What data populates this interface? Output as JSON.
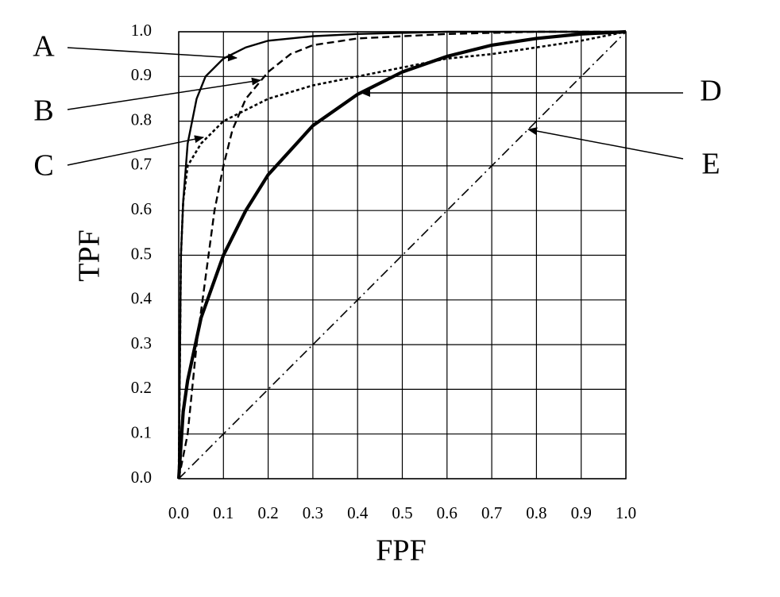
{
  "chart_data": {
    "type": "line",
    "xlabel": "FPF",
    "ylabel": "TPF",
    "xlim": [
      0,
      1
    ],
    "ylim": [
      0,
      1
    ],
    "xticks": [
      {
        "value": 0,
        "label": "0.0"
      },
      0.1,
      0.2,
      0.3,
      0.4,
      0.5,
      0.6,
      0.7,
      0.8,
      0.9,
      {
        "value": 1,
        "label": "1.0"
      }
    ],
    "yticks": [
      {
        "value": 0,
        "label": "0.0"
      },
      0.1,
      0.2,
      0.3,
      0.4,
      0.5,
      0.6,
      0.7,
      0.8,
      0.9,
      {
        "value": 1,
        "label": "1.0"
      }
    ],
    "grid": true,
    "series": [
      {
        "name": "A",
        "color": "#000000",
        "line_style": "solid",
        "x": [
          0,
          0.005,
          0.01,
          0.02,
          0.04,
          0.06,
          0.1,
          0.15,
          0.2,
          0.3,
          0.4,
          0.6,
          0.8,
          1.0
        ],
        "values": [
          0,
          0.5,
          0.62,
          0.75,
          0.85,
          0.9,
          0.94,
          0.965,
          0.98,
          0.99,
          0.995,
          1,
          1,
          1
        ]
      },
      {
        "name": "B",
        "color": "#000000",
        "line_style": "dashed",
        "x": [
          0,
          0.02,
          0.04,
          0.06,
          0.08,
          0.1,
          0.12,
          0.15,
          0.2,
          0.25,
          0.3,
          0.4,
          0.5,
          0.6,
          0.8,
          1.0
        ],
        "values": [
          0,
          0.1,
          0.3,
          0.45,
          0.6,
          0.7,
          0.78,
          0.85,
          0.91,
          0.95,
          0.97,
          0.985,
          0.99,
          0.995,
          1,
          1
        ]
      },
      {
        "name": "C",
        "color": "#000000",
        "line_style": "dotted",
        "x": [
          0,
          0.005,
          0.01,
          0.02,
          0.05,
          0.1,
          0.2,
          0.3,
          0.4,
          0.5,
          0.6,
          0.7,
          0.8,
          0.9,
          1.0
        ],
        "values": [
          0,
          0.5,
          0.62,
          0.7,
          0.75,
          0.8,
          0.85,
          0.88,
          0.9,
          0.92,
          0.94,
          0.95,
          0.965,
          0.98,
          1
        ]
      },
      {
        "name": "D",
        "color": "#000000",
        "line_style": "thick",
        "x": [
          0,
          0.01,
          0.02,
          0.05,
          0.1,
          0.15,
          0.2,
          0.3,
          0.4,
          0.5,
          0.6,
          0.7,
          0.8,
          0.9,
          1.0
        ],
        "values": [
          0,
          0.15,
          0.22,
          0.36,
          0.5,
          0.6,
          0.68,
          0.79,
          0.86,
          0.91,
          0.945,
          0.97,
          0.985,
          0.995,
          1
        ]
      },
      {
        "name": "E",
        "color": "#000000",
        "line_style": "dash-dot",
        "x": [
          0,
          1.0
        ],
        "values": [
          0,
          1
        ]
      }
    ]
  }
}
